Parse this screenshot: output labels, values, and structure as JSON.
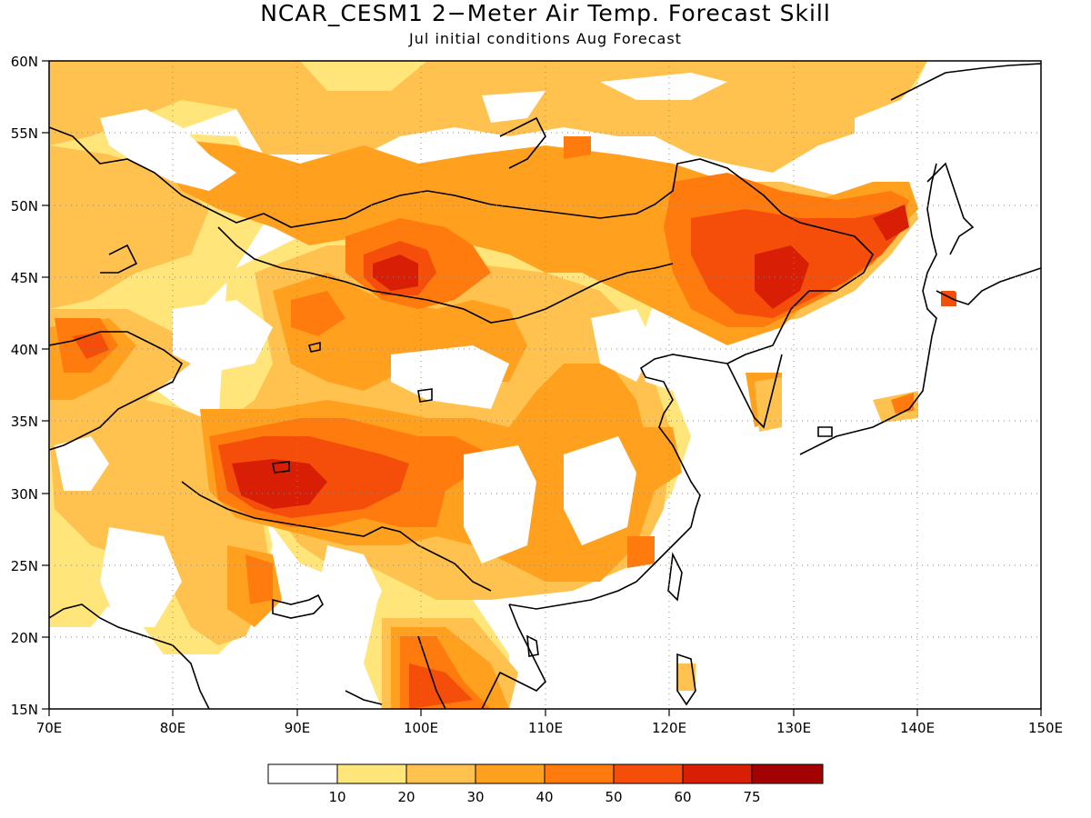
{
  "title": "NCAR_CESM1 2−Meter Air Temp. Forecast Skill",
  "subtitle": "Jul initial conditions  Aug Forecast",
  "map": {
    "lon_range": [
      70,
      150
    ],
    "lat_range": [
      15,
      60
    ],
    "lon_ticks": [
      "70E",
      "80E",
      "90E",
      "100E",
      "110E",
      "120E",
      "130E",
      "140E",
      "150E"
    ],
    "lat_ticks": [
      "15N",
      "20N",
      "25N",
      "30N",
      "35N",
      "40N",
      "45N",
      "50N",
      "55N",
      "60N"
    ],
    "grid": "dotted"
  },
  "colorbar": {
    "labels": [
      "10",
      "20",
      "30",
      "40",
      "50",
      "60",
      "75"
    ],
    "colors": [
      "#ffffff",
      "#ffe57a",
      "#ffc24f",
      "#ffa11f",
      "#ff7b0d",
      "#f44e0a",
      "#d91e06",
      "#a30202"
    ]
  },
  "chart_data": {
    "type": "heatmap",
    "variable": "2-Meter Air Temp. Forecast Skill",
    "levels": [
      10,
      20,
      30,
      40,
      50,
      60,
      75
    ],
    "regions": [
      {
        "lon": 97,
        "lat": 45.5,
        "value": 65
      },
      {
        "lon": 88,
        "lat": 30,
        "value": 65
      },
      {
        "lon": 128,
        "lat": 45,
        "value": 65
      },
      {
        "lon": 139,
        "lat": 49,
        "value": 60
      },
      {
        "lon": 142.5,
        "lat": 43.5,
        "value": 60
      },
      {
        "lon": 120,
        "lat": 43,
        "value": 55
      },
      {
        "lon": 95,
        "lat": 32,
        "value": 55
      },
      {
        "lon": 100,
        "lat": 18,
        "value": 55
      },
      {
        "lon": 85,
        "lat": 23,
        "value": 55
      },
      {
        "lon": 73,
        "lat": 40.5,
        "value": 55
      }
    ]
  }
}
